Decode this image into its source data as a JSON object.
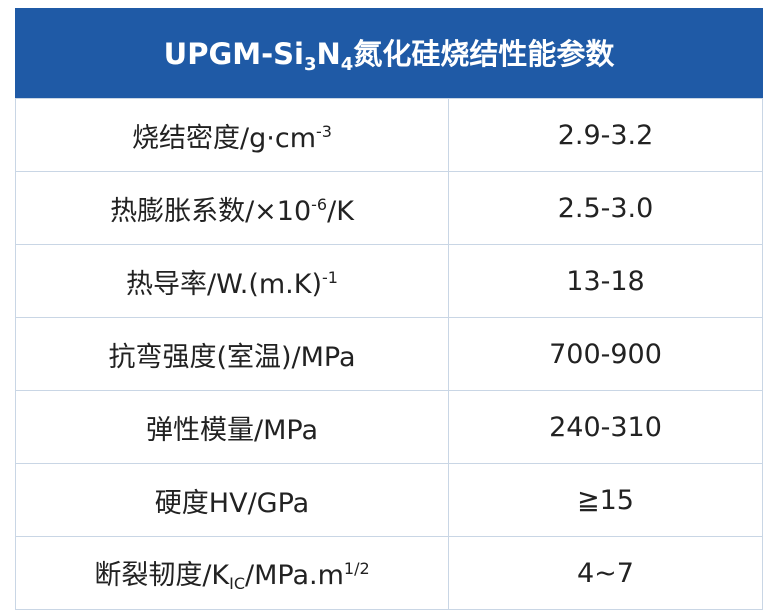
{
  "header": {
    "title": [
      "UPGM-Si",
      "3",
      "N",
      "4",
      "氮化硅烧结性能参数"
    ]
  },
  "table": {
    "rows": [
      [
        [
          "烧结密度/g·cm",
          "-3"
        ],
        "2.9-3.2"
      ],
      [
        [
          "热膨胀系数/×10",
          "-6",
          "/K"
        ],
        "2.5-3.0"
      ],
      [
        [
          "热导率/W.(m.K)",
          "-1"
        ],
        "13-18"
      ],
      [
        [
          "抗弯强度(室温)/MPa"
        ],
        "700-900"
      ],
      [
        [
          "弹性模量/MPa"
        ],
        "240-310"
      ],
      [
        [
          "硬度HV/GPa"
        ],
        "≧15"
      ],
      [
        [
          "断裂韧度/K",
          "IC",
          "/MPa.m",
          "1/2"
        ],
        "4~7"
      ]
    ]
  }
}
